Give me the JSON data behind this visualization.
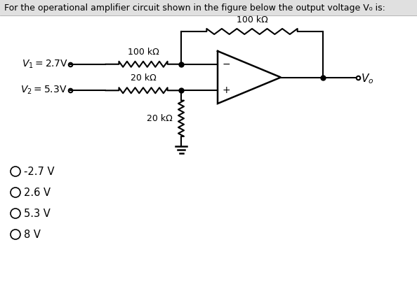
{
  "title": "For the operational amplifier circuit shown in the figure below the output voltage V₀ is:",
  "title_bg": "#e0e0e0",
  "background_color": "#ffffff",
  "choices": [
    "-2.7 V",
    "2.6 V",
    "5.3 V",
    "8 V"
  ],
  "r_feedback": "100 kΩ",
  "r1": "100 kΩ",
  "r2": "20 kΩ",
  "r3": "20 kΩ",
  "font_size": 10,
  "choice_font_size": 10.5
}
